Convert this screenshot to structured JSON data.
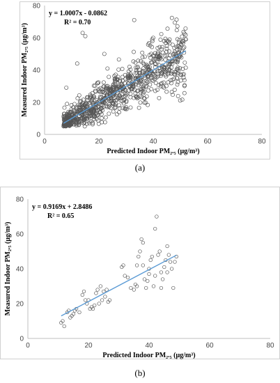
{
  "chart_data": [
    {
      "type": "scatter",
      "panel": "(a)",
      "xlabel": "Predicted Indoor PM₂.₅ (μg/m³)",
      "ylabel": "Measured Indoor PM₂.₅ (μg/m³)",
      "xlim": [
        0,
        80
      ],
      "ylim": [
        0,
        80
      ],
      "xticks": [
        "0",
        "20",
        "40",
        "60",
        "80"
      ],
      "yticks": [
        "0",
        "20",
        "40",
        "60",
        "80"
      ],
      "equation": "y = 1.0007x - 0.0862",
      "r2": "R² = 0.70",
      "fit": {
        "slope": 1.0007,
        "intercept": -0.0862,
        "x_range": [
          7,
          52
        ]
      },
      "scatter_spec": {
        "n": 900,
        "x_range": [
          7,
          52
        ],
        "seed": 11
      },
      "outliers": [
        [
          14,
          63
        ],
        [
          15,
          61
        ],
        [
          33,
          71
        ],
        [
          40,
          60
        ],
        [
          44,
          58
        ],
        [
          52,
          59
        ],
        [
          45,
          55
        ],
        [
          12,
          44
        ],
        [
          22,
          50
        ],
        [
          8,
          29
        ]
      ],
      "grid": false,
      "legend": "none"
    },
    {
      "type": "scatter",
      "panel": "(b)",
      "xlabel": "Predicted Indoor PM₂.₅ (μg/m³)",
      "ylabel": "Measured Indoor PM₂.₅ (μg/m³)",
      "xlim": [
        0,
        80
      ],
      "ylim": [
        0,
        80
      ],
      "xticks": [
        "0",
        "20",
        "40",
        "60",
        "80"
      ],
      "yticks": [
        "0",
        "20",
        "40",
        "60",
        "80"
      ],
      "equation": "y = 0.9169x + 2.8486",
      "r2": "R² = 0.65",
      "fit": {
        "slope": 0.9169,
        "intercept": 2.8486,
        "x_range": [
          11,
          49
        ]
      },
      "points": [
        [
          11,
          9
        ],
        [
          11.5,
          10
        ],
        [
          12,
          7
        ],
        [
          13,
          15
        ],
        [
          13.5,
          16
        ],
        [
          14,
          12
        ],
        [
          14.5,
          13
        ],
        [
          15,
          14
        ],
        [
          15.5,
          16
        ],
        [
          16,
          17
        ],
        [
          17,
          15
        ],
        [
          18,
          25
        ],
        [
          18.5,
          27
        ],
        [
          19,
          22
        ],
        [
          19.5,
          20
        ],
        [
          20,
          22
        ],
        [
          20.5,
          17
        ],
        [
          21,
          18
        ],
        [
          21.5,
          17
        ],
        [
          22,
          19
        ],
        [
          22.5,
          26
        ],
        [
          23,
          28
        ],
        [
          23.5,
          20
        ],
        [
          24,
          30
        ],
        [
          24.5,
          22
        ],
        [
          25,
          27
        ],
        [
          25.5,
          24
        ],
        [
          26,
          28
        ],
        [
          26.5,
          21
        ],
        [
          27,
          22
        ],
        [
          31,
          41
        ],
        [
          31.5,
          42
        ],
        [
          32,
          36
        ],
        [
          33,
          35
        ],
        [
          34,
          29
        ],
        [
          35,
          28
        ],
        [
          35.5,
          31
        ],
        [
          36,
          42
        ],
        [
          36.5,
          47
        ],
        [
          37,
          50
        ],
        [
          37.5,
          57
        ],
        [
          38,
          55
        ],
        [
          38.5,
          34
        ],
        [
          39,
          29
        ],
        [
          39.5,
          33
        ],
        [
          40,
          40
        ],
        [
          40.5,
          45
        ],
        [
          41,
          47
        ],
        [
          41.5,
          30
        ],
        [
          42,
          36
        ],
        [
          42,
          63
        ],
        [
          42.5,
          70
        ],
        [
          43,
          48
        ],
        [
          43.5,
          50
        ],
        [
          44,
          29
        ],
        [
          44.5,
          34
        ],
        [
          45,
          41
        ],
        [
          45.5,
          45
        ],
        [
          46,
          53
        ],
        [
          46.5,
          48
        ],
        [
          47,
          44
        ],
        [
          47.5,
          40
        ],
        [
          48,
          29
        ],
        [
          48.5,
          44
        ],
        [
          49,
          47
        ],
        [
          38,
          42
        ],
        [
          44,
          38
        ],
        [
          46,
          38
        ],
        [
          40,
          37
        ],
        [
          36,
          30
        ]
      ],
      "grid": false,
      "legend": "none"
    }
  ],
  "captions": {
    "a": "(a)",
    "b": "(b)"
  },
  "colors": {
    "point_stroke": "#555555",
    "fit_line": "#5b9bd5",
    "axis": "#bfbfbf"
  }
}
